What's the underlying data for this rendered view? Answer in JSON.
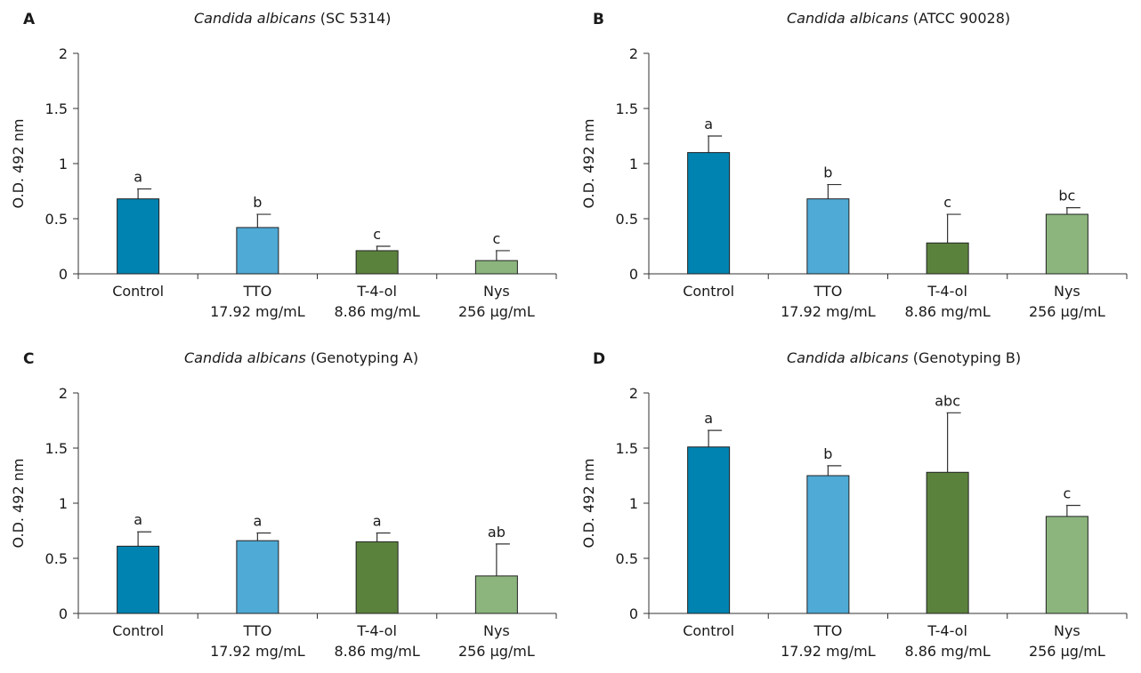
{
  "panels": [
    {
      "letter": "A",
      "title_italic": "Candida albicans",
      "title_rest": " (SC 5314)"
    },
    {
      "letter": "B",
      "title_italic": "Candida albicans",
      "title_rest": " (ATCC 90028)"
    },
    {
      "letter": "C",
      "title_italic": "Candida albicans",
      "title_rest": " (Genotyping A)"
    },
    {
      "letter": "D",
      "title_italic": "Candida albicans",
      "title_rest": " (Genotyping B)"
    }
  ],
  "colors": {
    "Control": "#0083b0",
    "TTO": "#4faad6",
    "T-4-ol": "#5b823c",
    "Nys": "#8cb57e"
  },
  "chart_data": [
    {
      "type": "bar",
      "title": "Candida albicans (SC 5314)",
      "ylabel": "O.D. 492 nm",
      "ylim": [
        0,
        2
      ],
      "yticks": [
        "0",
        "0.5",
        "1",
        "1.5",
        "2"
      ],
      "categories": [
        "Control",
        "TTO",
        "T-4-ol",
        "Nys"
      ],
      "concentrations": [
        "",
        "17.92 mg/mL",
        "8.86 mg/mL",
        "256 µg/mL"
      ],
      "values": [
        0.68,
        0.42,
        0.21,
        0.12
      ],
      "errors": [
        0.09,
        0.12,
        0.04,
        0.09
      ],
      "significance": [
        "a",
        "b",
        "c",
        "c"
      ]
    },
    {
      "type": "bar",
      "title": "Candida albicans (ATCC 90028)",
      "ylabel": "O.D. 492 nm",
      "ylim": [
        0,
        2
      ],
      "yticks": [
        "0",
        "0.5",
        "1",
        "1.5",
        "2"
      ],
      "categories": [
        "Control",
        "TTO",
        "T-4-ol",
        "Nys"
      ],
      "concentrations": [
        "",
        "17.92 mg/mL",
        "8.86 mg/mL",
        "256 µg/mL"
      ],
      "values": [
        1.1,
        0.68,
        0.28,
        0.54
      ],
      "errors": [
        0.15,
        0.13,
        0.26,
        0.06
      ],
      "significance": [
        "a",
        "b",
        "c",
        "bc"
      ]
    },
    {
      "type": "bar",
      "title": "Candida albicans (Genotyping A)",
      "ylabel": "O.D. 492 nm",
      "ylim": [
        0,
        2
      ],
      "yticks": [
        "0",
        "0.5",
        "1",
        "1.5",
        "2"
      ],
      "categories": [
        "Control",
        "TTO",
        "T-4-ol",
        "Nys"
      ],
      "concentrations": [
        "",
        "17.92 mg/mL",
        "8.86 mg/mL",
        "256 µg/mL"
      ],
      "values": [
        0.61,
        0.66,
        0.65,
        0.34
      ],
      "errors": [
        0.13,
        0.07,
        0.08,
        0.29
      ],
      "significance": [
        "a",
        "a",
        "a",
        "ab"
      ]
    },
    {
      "type": "bar",
      "title": "Candida albicans (Genotyping B)",
      "ylabel": "O.D. 492 nm",
      "ylim": [
        0,
        2
      ],
      "yticks": [
        "0",
        "0.5",
        "1",
        "1.5",
        "2"
      ],
      "categories": [
        "Control",
        "TTO",
        "T-4-ol",
        "Nys"
      ],
      "concentrations": [
        "",
        "17.92 mg/mL",
        "8.86 mg/mL",
        "256 µg/mL"
      ],
      "values": [
        1.51,
        1.25,
        1.28,
        0.88
      ],
      "errors": [
        0.15,
        0.09,
        0.54,
        0.1
      ],
      "significance": [
        "a",
        "b",
        "abc",
        "c"
      ]
    }
  ]
}
